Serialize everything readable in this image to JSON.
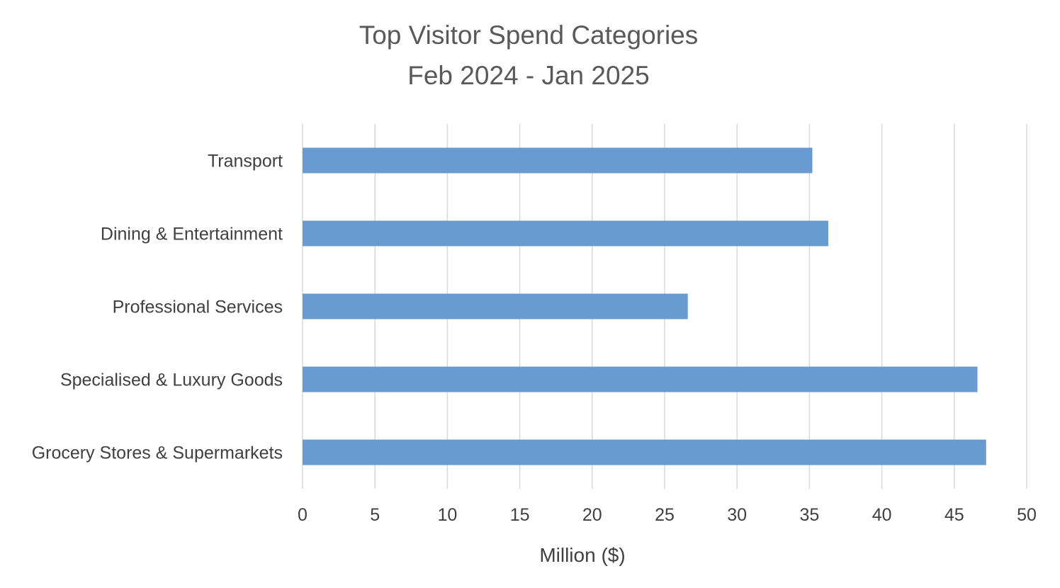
{
  "chart_data": {
    "type": "bar",
    "orientation": "horizontal",
    "title": "Top Visitor Spend Categories",
    "subtitle": "Feb 2024 - Jan 2025",
    "xlabel": "Million ($)",
    "ylabel": "",
    "categories": [
      "Transport",
      "Dining & Entertainment",
      "Professional Services",
      "Specialised & Luxury Goods",
      "Grocery Stores & Supermarkets"
    ],
    "values": [
      35.2,
      36.3,
      26.6,
      46.6,
      47.2
    ],
    "xlim": [
      0,
      50
    ],
    "xticks": [
      0,
      5,
      10,
      15,
      20,
      25,
      30,
      35,
      40,
      45,
      50
    ],
    "grid": "vertical",
    "legend": "none",
    "bar_color": "#6a9bd0"
  }
}
